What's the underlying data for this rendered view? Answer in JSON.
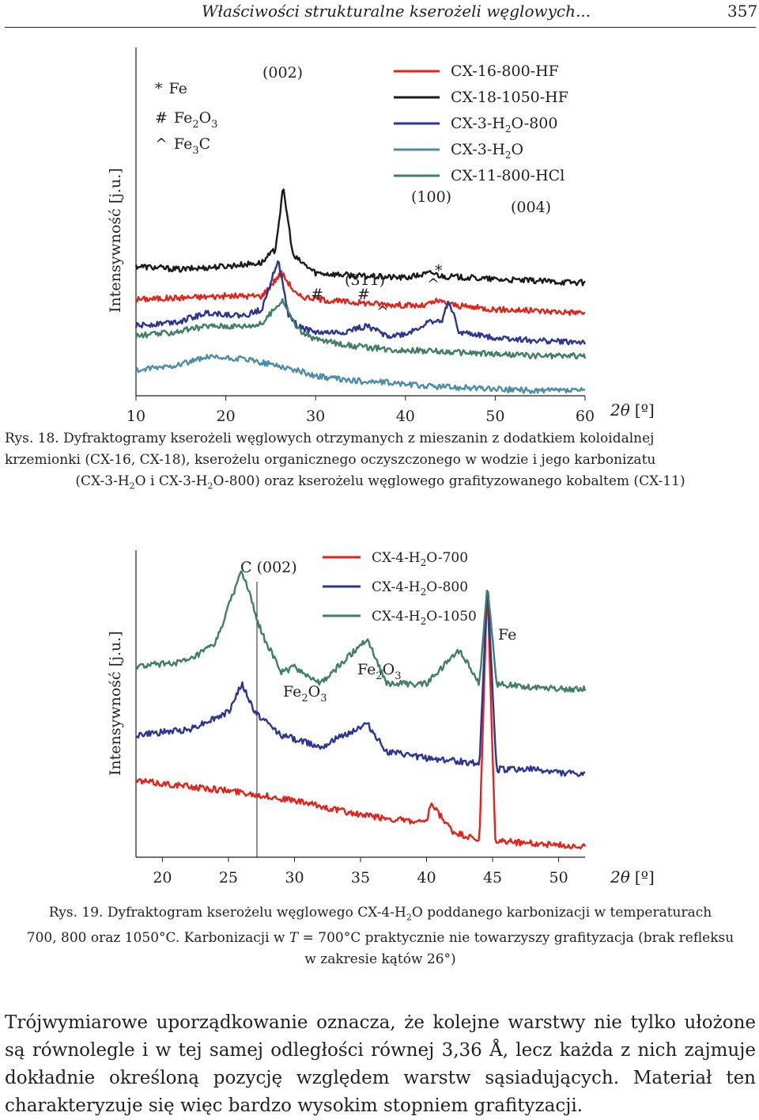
{
  "header": {
    "title": "Właściwości strukturalne kserożeli węglowych...",
    "page_number": "357"
  },
  "figure1": {
    "caption": {
      "label": "Rys. 18.",
      "line1": "Dyfraktogramy kserożeli węglowych otrzymanych z mieszanin z dodatkiem koloidalnej",
      "line2": "krzemionki (CX-16, CX-18), kserożelu organicznego oczyszczonego w wodzie i jego karbonizatu",
      "line3_a": "(CX-3-H",
      "line3_b": "O i CX-3-H",
      "line3_c": "O-800) oraz kserożelu węglowego grafityzowanego kobaltem (CX-11)"
    },
    "ylabel": "Intensywność [j.u.]",
    "xlabel_symbol": "2θ",
    "xlabel_unit": "[º]",
    "xticks": [
      "10",
      "20",
      "30",
      "40",
      "50",
      "60"
    ],
    "phase_legend": [
      {
        "symbol": "*",
        "base": "Fe",
        "sub": "",
        "tail": ""
      },
      {
        "symbol": "#",
        "base": "Fe",
        "sub": "2",
        "tail": "O",
        "sub2": "3"
      },
      {
        "symbol": "^",
        "base": "Fe",
        "sub": "3",
        "tail": "C"
      }
    ],
    "annotations": {
      "p002": "(002)",
      "p100": "(100)",
      "p004": "(004)",
      "p311": "(311)",
      "hash1": "#",
      "hash2": "#",
      "caret1": "^",
      "caret2": "^",
      "star": "*"
    },
    "colors": {
      "red": "#e2231a",
      "black": "#1a1a1a",
      "navy": "#2b3593",
      "teal": "#4a8fa8",
      "green": "#3f7f62"
    }
  },
  "figure2": {
    "caption": {
      "label": "Rys. 19.",
      "line1_a": "Dyfraktogram kserożelu węglowego CX-4-H",
      "line1_b": "O poddanego karbonizacji w temperaturach",
      "line2": "700, 800 oraz 1050°C. Karbonizacji w ",
      "line2_T": "T",
      "line2_b": " = 700°C praktycznie nie towarzyszy grafityzacja (brak refleksu",
      "line3": "w zakresie kątów 26°)"
    },
    "ylabel": "Intensywność [j.u.]",
    "xlabel_symbol": "2θ",
    "xlabel_unit": "[º]",
    "xticks": [
      "20",
      "25",
      "30",
      "35",
      "40",
      "45",
      "50"
    ],
    "annotations": {
      "c002": "C (002)",
      "fe2o3_a": "Fe",
      "fe2o3_b": "Fe",
      "fe": "Fe"
    }
  },
  "body_text": "Trójwymiarowe uporządkowanie oznacza, że kolejne warstwy nie tylko ułożone są równolegle i w tej samej odległości równej 3,36 Å, lecz każda z nich zajmuje dokładnie określoną pozycję względem warstw sąsiadujących. Materiał ten charakteryzuje się więc bardzo wysokim stopniem grafityzacji.",
  "chart_data": [
    {
      "type": "line",
      "xlabel": "2θ [º]",
      "ylabel": "Intensywność [j.u.]",
      "xlim": [
        10,
        60
      ],
      "series": [
        {
          "name": "CX-16-800-HF",
          "color": "#e2231a",
          "x": [
            10,
            15,
            20,
            24,
            26.2,
            28,
            32,
            38,
            42,
            43.5,
            46,
            50,
            55,
            60
          ],
          "y": [
            0.58,
            0.59,
            0.6,
            0.6,
            0.74,
            0.6,
            0.57,
            0.55,
            0.54,
            0.57,
            0.54,
            0.52,
            0.51,
            0.5
          ]
        },
        {
          "name": "CX-18-1050-HF",
          "color": "#1a1a1a",
          "x": [
            10,
            15,
            20,
            24,
            25.5,
            26.4,
            27.5,
            30,
            35,
            40,
            43,
            44,
            47,
            50,
            55,
            60
          ],
          "y": [
            0.78,
            0.76,
            0.78,
            0.8,
            0.88,
            1.25,
            0.84,
            0.74,
            0.72,
            0.71,
            0.74,
            0.72,
            0.71,
            0.7,
            0.69,
            0.68
          ]
        },
        {
          "name": "CX-3-H2O-800",
          "color": "#2b3593",
          "x": [
            10,
            15,
            18,
            22,
            24,
            25.8,
            27,
            28,
            30,
            33,
            35.7,
            38,
            40,
            43,
            44,
            44.8,
            46,
            50,
            55,
            60
          ],
          "y": [
            0.42,
            0.45,
            0.5,
            0.48,
            0.52,
            0.82,
            0.48,
            0.42,
            0.38,
            0.38,
            0.42,
            0.36,
            0.37,
            0.45,
            0.44,
            0.58,
            0.38,
            0.35,
            0.33,
            0.32
          ]
        },
        {
          "name": "CX-3-H2O",
          "color": "#4a8fa8",
          "x": [
            10,
            14,
            18,
            22,
            26,
            30,
            34,
            38,
            42,
            46,
            50,
            55,
            60
          ],
          "y": [
            0.15,
            0.18,
            0.23,
            0.22,
            0.18,
            0.12,
            0.09,
            0.08,
            0.06,
            0.05,
            0.04,
            0.03,
            0.03
          ]
        },
        {
          "name": "CX-11-800-HCl",
          "color": "#3f7f62",
          "x": [
            10,
            14,
            18,
            22,
            24,
            26.3,
            28,
            30,
            34,
            38,
            42,
            46,
            50,
            55,
            60
          ],
          "y": [
            0.36,
            0.38,
            0.42,
            0.42,
            0.43,
            0.58,
            0.4,
            0.34,
            0.3,
            0.28,
            0.27,
            0.26,
            0.25,
            0.24,
            0.24
          ]
        }
      ]
    },
    {
      "type": "line",
      "xlabel": "2θ [º]",
      "ylabel": "Intensywność [j.u.]",
      "xlim": [
        18,
        52
      ],
      "series": [
        {
          "name": "CX-4-H2O-700",
          "color": "#e2231a",
          "x": [
            18,
            22,
            26,
            30,
            35,
            40,
            40.3,
            42,
            44,
            44.6,
            45.2,
            48,
            52
          ],
          "y": [
            0.26,
            0.24,
            0.22,
            0.19,
            0.14,
            0.11,
            0.18,
            0.08,
            0.05,
            0.95,
            0.05,
            0.04,
            0.03
          ]
        },
        {
          "name": "CX-4-H2O-800",
          "color": "#2b3593",
          "x": [
            18,
            22,
            25,
            26,
            27,
            29,
            32,
            35.5,
            37,
            40,
            44,
            44.6,
            45.3,
            48,
            52
          ],
          "y": [
            0.42,
            0.44,
            0.5,
            0.6,
            0.5,
            0.42,
            0.38,
            0.46,
            0.36,
            0.34,
            0.32,
            0.95,
            0.3,
            0.3,
            0.28
          ]
        },
        {
          "name": "CX-4-H2O-1050",
          "color": "#3f7f62",
          "x": [
            18,
            22,
            24,
            26,
            27.5,
            29,
            30,
            32,
            35.5,
            37,
            40,
            42.5,
            44,
            44.6,
            45.3,
            48,
            52
          ],
          "y": [
            0.66,
            0.68,
            0.74,
            1.0,
            0.78,
            0.64,
            0.66,
            0.6,
            0.76,
            0.6,
            0.6,
            0.72,
            0.6,
            0.95,
            0.6,
            0.59,
            0.58
          ]
        }
      ]
    }
  ]
}
